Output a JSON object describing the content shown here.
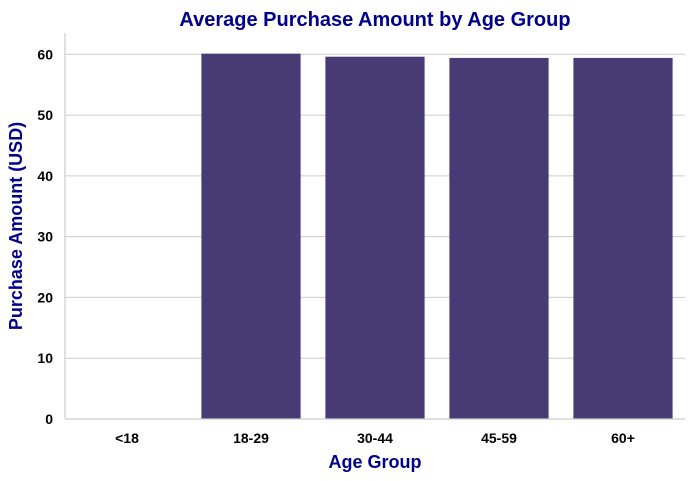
{
  "chart_data": {
    "type": "bar",
    "title": "Average Purchase Amount by Age Group",
    "xlabel": "Age Group",
    "ylabel": "Purchase Amount (USD)",
    "categories": [
      "<18",
      "18-29",
      "30-44",
      "45-59",
      "60+"
    ],
    "values": [
      0,
      60.1,
      59.6,
      59.4,
      59.4
    ],
    "ylim": [
      0,
      63.5
    ],
    "yticks": [
      0,
      10,
      20,
      30,
      40,
      50,
      60
    ],
    "grid": "horizontal",
    "bar_color": "#483a74",
    "title_color": "#00008b",
    "label_color": "#00008b"
  }
}
